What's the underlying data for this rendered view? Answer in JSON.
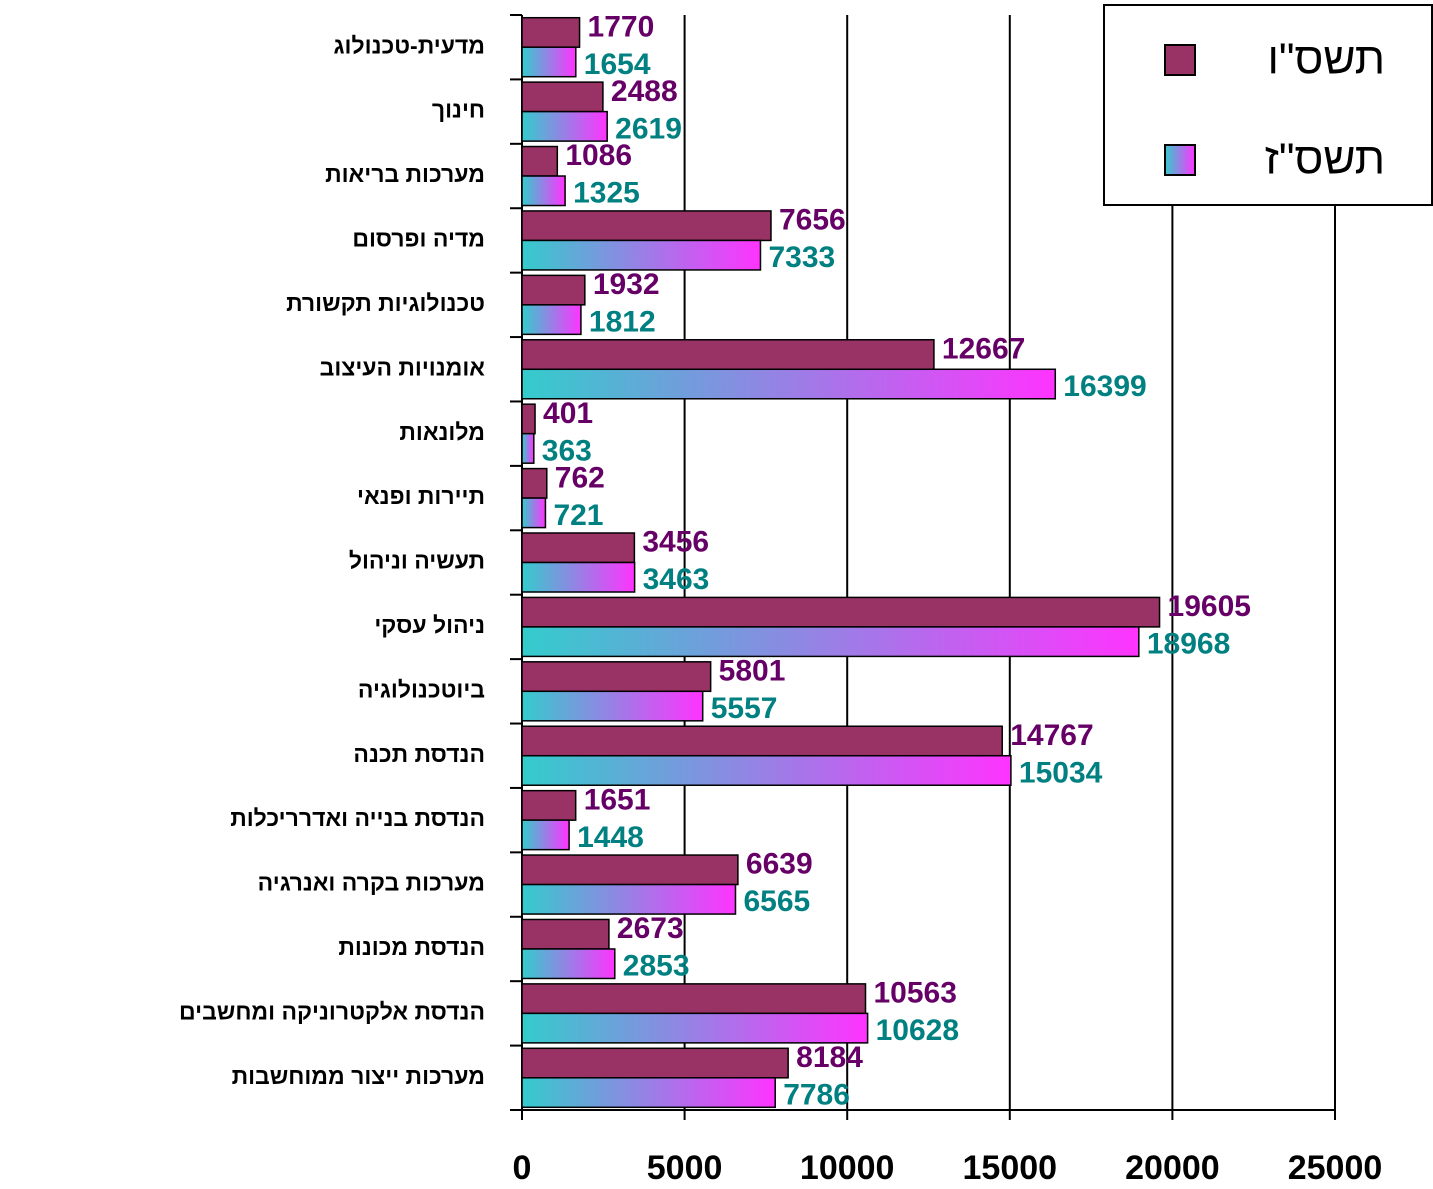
{
  "chart_data": {
    "type": "barh",
    "categories": [
      "מדעית-טכנולוג",
      "חינוך",
      "מערכות בריאות",
      "מדיה ופרסום",
      "טכנולוגיות תקשורת",
      "אומנויות העיצוב",
      "מלונאות",
      "תיירות ופנאי",
      "תעשיה וניהול",
      "ניהול עסקי",
      "ביוטכנולוגיה",
      "הנדסת תכנה",
      "הנדסת בנייה ואדרריכלות",
      "מערכות בקרה ואנרגיה",
      "הנדסת מכונות",
      "הנדסת אלקטרוניקה ומחשבים",
      "מערכות ייצור ממוחשבות"
    ],
    "series": [
      {
        "name": "תשס\"ו",
        "color": "#993366",
        "label_color": "#660066",
        "values": [
          1770,
          2488,
          1086,
          7656,
          1932,
          12667,
          401,
          762,
          3456,
          19605,
          5801,
          14767,
          1651,
          6639,
          2673,
          10563,
          8184
        ]
      },
      {
        "name": "תשס\"ז",
        "color": "#ff33ff",
        "gradient_from": "#33cccc",
        "label_color": "#008080",
        "values": [
          1654,
          2619,
          1325,
          7333,
          1812,
          16399,
          363,
          721,
          3463,
          18968,
          5557,
          15034,
          1448,
          6565,
          2853,
          10628,
          7786
        ]
      }
    ],
    "xlim": [
      0,
      25000
    ],
    "xticks": [
      0,
      5000,
      10000,
      15000,
      20000,
      25000
    ],
    "grid": true,
    "legend": "top-right"
  }
}
